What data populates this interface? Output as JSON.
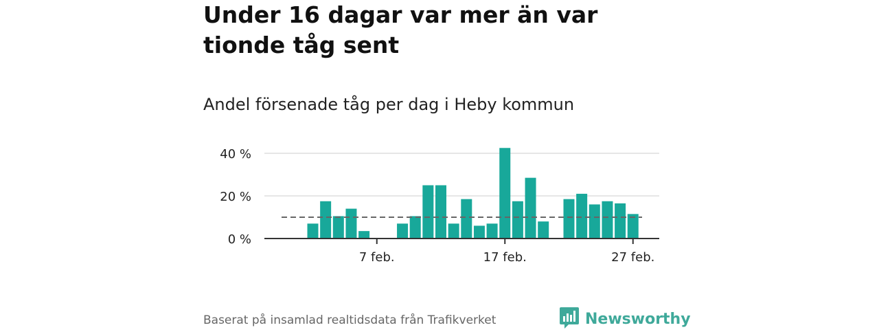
{
  "header": {
    "title": "Under 16 dagar var mer än var tionde tåg sent",
    "subtitle": "Andel försenade tåg per dag i Heby kommun"
  },
  "footer": {
    "source": "Baserat på insamlad realtidsdata från Trafikverket",
    "brand": "Newsworthy"
  },
  "colors": {
    "bar": "#18a89a",
    "reference_line": "#666666",
    "grid": "#dddddd",
    "brand": "#3fa99a"
  },
  "chart_data": {
    "type": "bar",
    "x_type": "date",
    "x": [
      "2 feb.",
      "3 feb.",
      "4 feb.",
      "5 feb.",
      "6 feb.",
      "7 feb.",
      "8 feb.",
      "9 feb.",
      "10 feb.",
      "11 feb.",
      "12 feb.",
      "13 feb.",
      "14 feb.",
      "15 feb.",
      "16 feb.",
      "17 feb.",
      "18 feb.",
      "19 feb.",
      "20 feb.",
      "21 feb.",
      "22 feb.",
      "23 feb.",
      "24 feb.",
      "25 feb.",
      "26 feb.",
      "27 feb.",
      "28 feb."
    ],
    "values": [
      7,
      17.5,
      10.5,
      14,
      3.5,
      null,
      null,
      7,
      10.5,
      25,
      25,
      7,
      18.5,
      6,
      7,
      42.5,
      17.5,
      28.5,
      8,
      null,
      18.5,
      21,
      16,
      17.5,
      16.5,
      11.5,
      null
    ],
    "ylim": [
      0,
      45
    ],
    "yticks": [
      0,
      20,
      40
    ],
    "ytick_labels": [
      "0 %",
      "20 %",
      "40 %"
    ],
    "xticks": [
      "7 feb.",
      "17 feb.",
      "27 feb."
    ],
    "reference_line": {
      "value": 10
    },
    "grid": true,
    "legend": "none",
    "xlabel": "",
    "ylabel": ""
  }
}
